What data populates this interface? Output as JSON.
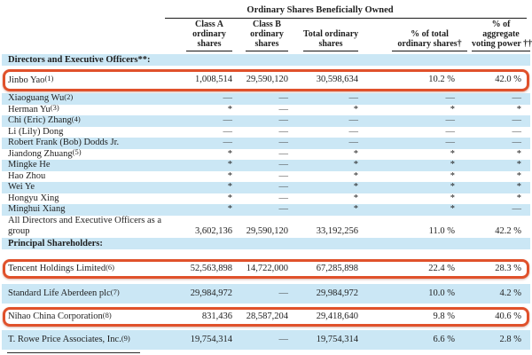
{
  "colors": {
    "highlight_box": "#e0512b",
    "row_shade": "#cbe7f5"
  },
  "table": {
    "spanner_title": "Ordinary Shares Beneficially Owned",
    "columns": [
      {
        "id": "class-a-shares",
        "label": "Class A ordinary shares",
        "lines": [
          "Class A",
          "ordinary",
          "shares"
        ]
      },
      {
        "id": "class-b-shares",
        "label": "Class B ordinary shares",
        "lines": [
          "Class B",
          "ordinary",
          "shares"
        ]
      },
      {
        "id": "total-shares",
        "label": "Total ordinary shares",
        "lines": [
          "Total ordinary",
          "shares"
        ]
      },
      {
        "id": "pct-total",
        "label": "% of total ordinary shares†",
        "lines": [
          "% of total",
          "ordinary shares†"
        ]
      },
      {
        "id": "pct-voting",
        "label": "% of aggregate voting power ††",
        "lines": [
          "% of",
          "aggregate",
          "voting power ††"
        ]
      }
    ],
    "sections": [
      {
        "id": "directors",
        "header": {
          "label": "Directors and Executive Officers**:"
        },
        "rows": [
          {
            "label": "Jinbo Yao",
            "note": "(1)",
            "highlighted": true,
            "shaded": false,
            "cells": [
              "1,008,514",
              "29,590,120",
              "30,598,634",
              "10.2 %",
              "42.0 %"
            ]
          },
          {
            "label": "Xiaoguang Wu",
            "note": "(2)",
            "highlighted": false,
            "shaded": true,
            "cells": [
              "—",
              "—",
              "—",
              "—",
              "—"
            ]
          },
          {
            "label": "Herman Yu",
            "note": "(3)",
            "highlighted": false,
            "shaded": false,
            "cells": [
              "*",
              "—",
              "*",
              "*",
              "*"
            ]
          },
          {
            "label": "Chi (Eric) Zhang",
            "note": "(4)",
            "highlighted": false,
            "shaded": true,
            "cells": [
              "—",
              "—",
              "—",
              "—",
              "—"
            ]
          },
          {
            "label": "Li (Lily) Dong",
            "note": "",
            "highlighted": false,
            "shaded": false,
            "cells": [
              "—",
              "—",
              "—",
              "—",
              "—"
            ]
          },
          {
            "label": "Robert Frank (Bob) Dodds Jr.",
            "note": "",
            "highlighted": false,
            "shaded": true,
            "cells": [
              "—",
              "—",
              "—",
              "—",
              "—"
            ]
          },
          {
            "label": "Jiandong Zhuang",
            "note": "(5)",
            "highlighted": false,
            "shaded": false,
            "cells": [
              "*",
              "—",
              "*",
              "*",
              "*"
            ]
          },
          {
            "label": "Mingke He",
            "note": "",
            "highlighted": false,
            "shaded": true,
            "cells": [
              "*",
              "—",
              "*",
              "*",
              "*"
            ]
          },
          {
            "label": "Hao Zhou",
            "note": "",
            "highlighted": false,
            "shaded": false,
            "cells": [
              "*",
              "—",
              "*",
              "*",
              "*"
            ]
          },
          {
            "label": "Wei Ye",
            "note": "",
            "highlighted": false,
            "shaded": true,
            "cells": [
              "*",
              "—",
              "*",
              "*",
              "*"
            ]
          },
          {
            "label": "Hongyu Xing",
            "note": "",
            "highlighted": false,
            "shaded": false,
            "cells": [
              "*",
              "—",
              "*",
              "*",
              "*"
            ]
          },
          {
            "label": "Minghui Xiang",
            "note": "",
            "highlighted": false,
            "shaded": true,
            "cells": [
              "*",
              "—",
              "*",
              "*",
              "—"
            ]
          },
          {
            "label": "All Directors and Executive Officers as a group",
            "note": "",
            "highlighted": false,
            "shaded": false,
            "cells": [
              "3,602,136",
              "29,590,120",
              "33,192,256",
              "11.0 %",
              "42.2 %"
            ]
          }
        ]
      },
      {
        "id": "principal",
        "header": {
          "label": "Principal Shareholders:"
        },
        "rows": [
          {
            "label": "Tencent Holdings Limited",
            "note": "(6)",
            "highlighted": true,
            "shaded": false,
            "cells": [
              "52,563,898",
              "14,722,000",
              "67,285,898",
              "22.4 %",
              "28.3 %"
            ]
          },
          {
            "label": "Standard Life Aberdeen plc",
            "note": "(7)",
            "highlighted": false,
            "shaded": true,
            "cells": [
              "29,984,972",
              "—",
              "29,984,972",
              "10.0 %",
              "4.2 %"
            ]
          },
          {
            "label": "Nihao China Corporation",
            "note": "(8)",
            "highlighted": true,
            "shaded": false,
            "cells": [
              "831,436",
              "28,587,204",
              "29,418,640",
              "9.8 %",
              "40.6 %"
            ]
          },
          {
            "label": "T. Rowe Price Associates, Inc.",
            "note": "(9)",
            "highlighted": false,
            "shaded": true,
            "cells": [
              "19,754,314",
              "—",
              "19,754,314",
              "6.6 %",
              "2.8 %"
            ]
          }
        ]
      }
    ]
  }
}
